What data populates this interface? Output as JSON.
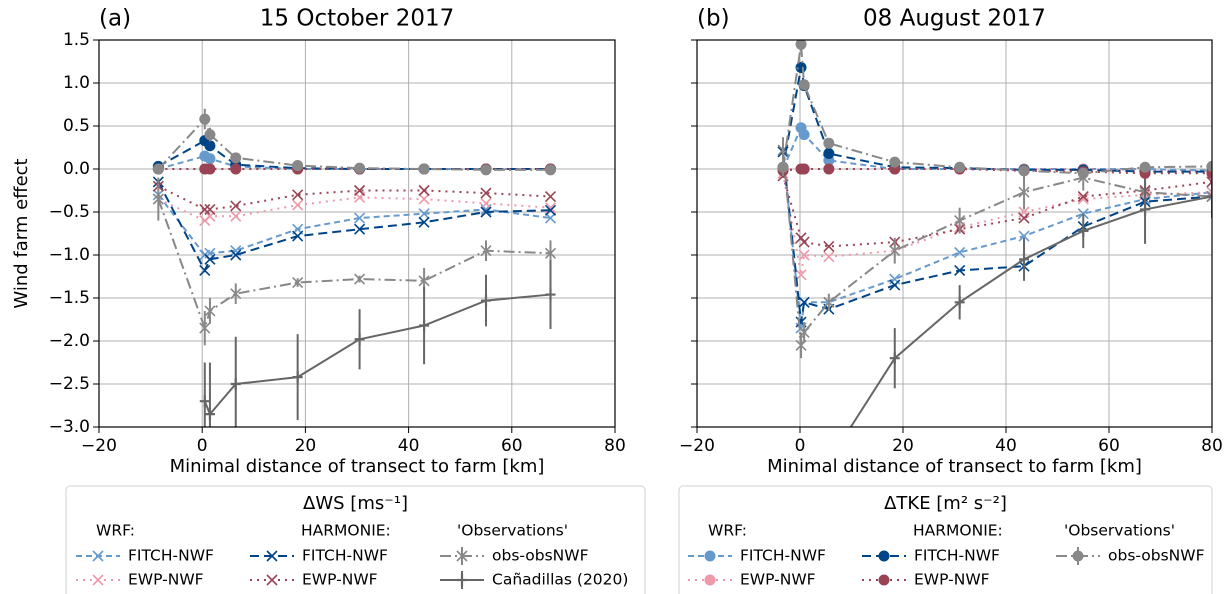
{
  "chart_data": [
    {
      "type": "line",
      "panel_label": "(a)",
      "title": "15 October 2017",
      "xlabel": "Minimal distance of transect to farm [km]",
      "ylabel": "Wind farm effect",
      "xlim": [
        -20,
        80
      ],
      "ylim": [
        -3,
        1.5
      ],
      "xticks": [
        {
          "value": -20,
          "label": "−20"
        },
        0,
        20,
        40,
        60,
        80
      ],
      "yticks": [
        {
          "value": -3,
          "label": "−3.0"
        },
        {
          "value": -2.5,
          "label": "−2.5"
        },
        {
          "value": -2,
          "label": "−2.0"
        },
        {
          "value": -1.5,
          "label": "−1.5"
        },
        {
          "value": -1,
          "label": "−1.0"
        },
        {
          "value": -0.5,
          "label": "−0.5"
        },
        {
          "value": 0,
          "label": "0.0"
        },
        {
          "value": 0.5,
          "label": "0.5"
        },
        {
          "value": 1,
          "label": "1.0"
        },
        {
          "value": 1.5,
          "label": "1.5"
        }
      ],
      "ytick_labels": true,
      "grid": true,
      "legend": {
        "title": "ΔWS [ms⁻¹]",
        "groups": [
          "WRF:",
          "HARMONIE:",
          "'Observations'"
        ]
      },
      "series": [
        {
          "name": "FITCH-NWF",
          "group": 0,
          "color": "#6699cc",
          "dash": "dashed",
          "marker": "x",
          "x": [
            -8.5,
            0.5,
            1.5,
            6.5,
            18.5,
            30.5,
            43,
            55,
            67.5
          ],
          "values": [
            -0.3,
            -1.0,
            -0.98,
            -0.95,
            -0.7,
            -0.57,
            -0.52,
            -0.47,
            -0.57
          ]
        },
        {
          "name": "EWP-NWF",
          "group": 0,
          "color": "#ee99aa",
          "dash": "dotted",
          "marker": "x",
          "x": [
            -8.5,
            0.5,
            1.5,
            6.5,
            18.5,
            30.5,
            43,
            55,
            67.5
          ],
          "values": [
            -0.35,
            -0.6,
            -0.55,
            -0.55,
            -0.42,
            -0.33,
            -0.35,
            -0.4,
            -0.45
          ]
        },
        {
          "name": "FITCH-NWF",
          "group": 1,
          "color": "#004488",
          "dash": "longdash",
          "marker": "x",
          "x": [
            -8.5,
            0.5,
            1.5,
            6.5,
            18.5,
            30.5,
            43,
            55,
            67.5
          ],
          "values": [
            -0.15,
            -1.18,
            -1.05,
            -1.0,
            -0.78,
            -0.7,
            -0.62,
            -0.5,
            -0.48
          ]
        },
        {
          "name": "EWP-NWF",
          "group": 1,
          "color": "#994455",
          "dash": "dotted",
          "marker": "x",
          "x": [
            -8.5,
            0.5,
            1.5,
            6.5,
            18.5,
            30.5,
            43,
            55,
            67.5
          ],
          "values": [
            -0.2,
            -0.47,
            -0.47,
            -0.43,
            -0.3,
            -0.25,
            -0.25,
            -0.28,
            -0.32
          ]
        },
        {
          "name": "obs-obsNWF",
          "group": 2,
          "color": "#888888",
          "dash": "dashdot",
          "marker": "x",
          "x": [
            -8.5,
            0.5,
            1.5,
            6.5,
            18.5,
            30.5,
            43,
            55,
            67.5
          ],
          "values": [
            -0.35,
            -1.85,
            -1.65,
            -1.45,
            -1.32,
            -1.28,
            -1.3,
            -0.95,
            -0.98
          ],
          "errors": [
            0.25,
            0.2,
            0.15,
            0.12,
            0.05,
            0.04,
            0.15,
            0.12,
            0.15
          ]
        },
        {
          "name": "Cañadillas (2020)",
          "group": 2,
          "color": "#666666",
          "dash": "solid",
          "marker": "plus",
          "x": [
            0.5,
            1.5,
            6.5,
            18.5,
            30.5,
            43,
            55,
            67.5
          ],
          "values": [
            -2.7,
            -2.85,
            -2.5,
            -2.42,
            -1.98,
            -1.82,
            -1.53,
            -1.46
          ],
          "errors": [
            0.45,
            0.6,
            0.55,
            0.5,
            0.35,
            0.45,
            0.3,
            0.4
          ]
        }
      ],
      "other_series": [
        {
          "color": "#6699cc",
          "dash": "dashed",
          "marker": "circle",
          "x": [
            -8.5,
            0.5,
            1.5,
            6.5,
            18.5,
            30.5,
            43,
            55,
            67.5
          ],
          "values": [
            0,
            0.15,
            0.12,
            0.03,
            0,
            0,
            0,
            0,
            0
          ]
        },
        {
          "color": "#ee99aa",
          "dash": "dotted",
          "marker": "circle",
          "x": [
            -8.5,
            0.5,
            1.5,
            6.5,
            18.5,
            30.5,
            43,
            55,
            67.5
          ],
          "values": [
            0,
            0,
            0,
            0,
            0,
            0,
            0,
            0,
            0
          ]
        },
        {
          "color": "#004488",
          "dash": "longdash",
          "marker": "circle",
          "x": [
            -8.5,
            0.5,
            1.5,
            6.5,
            18.5,
            30.5,
            43,
            55,
            67.5
          ],
          "values": [
            0.03,
            0.33,
            0.27,
            0.05,
            0.01,
            0,
            0,
            0,
            0
          ]
        },
        {
          "color": "#994455",
          "dash": "dotted",
          "marker": "circle",
          "x": [
            -8.5,
            0.5,
            1.5,
            6.5,
            18.5,
            30.5,
            43,
            55,
            67.5
          ],
          "values": [
            0,
            0,
            0,
            0,
            0,
            0,
            0,
            0,
            0
          ]
        },
        {
          "color": "#888888",
          "dash": "dashdot",
          "marker": "circle",
          "x": [
            -8.5,
            0.5,
            1.5,
            6.5,
            18.5,
            30.5,
            43,
            55,
            67.5
          ],
          "values": [
            0,
            0.58,
            0.4,
            0.13,
            0.04,
            0.01,
            0,
            -0.01,
            -0.01
          ],
          "errors": [
            0.03,
            0.12,
            0.08,
            0.04,
            0.02,
            0.02,
            0.02,
            0.02,
            0.02
          ]
        }
      ]
    },
    {
      "type": "line",
      "panel_label": "(b)",
      "title": "08 August 2017",
      "xlabel": "Minimal distance of transect to farm [km]",
      "xlim": [
        -20,
        80
      ],
      "ylim": [
        -3,
        1.5
      ],
      "xticks": [
        {
          "value": -20,
          "label": "−20"
        },
        0,
        20,
        40,
        60,
        80
      ],
      "yticks": [
        -3,
        -2.5,
        -2,
        -1.5,
        -1,
        -0.5,
        0,
        0.5,
        1,
        1.5
      ],
      "ytick_labels": false,
      "grid": true,
      "legend": {
        "title": "ΔTKE [m² s⁻²]",
        "groups": [
          "WRF:",
          "HARMONIE:",
          "'Observations'"
        ]
      },
      "series": [
        {
          "name": "FITCH-NWF",
          "group": 0,
          "color": "#6699cc",
          "dash": "dashed",
          "marker": "circle",
          "x": [
            -3.3,
            0.2,
            0.8,
            5.6,
            18.4,
            31,
            43.5,
            55,
            67,
            80
          ],
          "values": [
            0,
            0.48,
            0.4,
            0.1,
            0,
            0,
            0,
            0,
            0,
            -0.02
          ]
        },
        {
          "name": "EWP-NWF",
          "group": 0,
          "color": "#ee99aa",
          "dash": "dotted",
          "marker": "circle",
          "x": [
            -3.3,
            0.2,
            0.8,
            5.6,
            18.4,
            31,
            43.5,
            55,
            67,
            80
          ],
          "values": [
            0,
            0,
            0,
            0,
            0,
            0,
            0,
            0,
            -0.02,
            -0.03
          ]
        },
        {
          "name": "FITCH-NWF",
          "group": 1,
          "color": "#004488",
          "dash": "longdash",
          "marker": "circle",
          "x": [
            -3.3,
            0.2,
            0.8,
            5.6,
            18.4,
            31,
            43.5,
            55,
            67,
            80
          ],
          "values": [
            0.02,
            1.18,
            0.97,
            0.18,
            0.02,
            0.01,
            -0.01,
            -0.01,
            -0.03,
            -0.03
          ]
        },
        {
          "name": "EWP-NWF",
          "group": 1,
          "color": "#994455",
          "dash": "dotted",
          "marker": "circle",
          "x": [
            -3.3,
            0.2,
            0.8,
            5.6,
            18.4,
            31,
            43.5,
            55,
            67,
            80
          ],
          "values": [
            -0.02,
            0,
            0,
            0,
            0,
            0,
            -0.02,
            -0.03,
            -0.05,
            -0.05
          ]
        },
        {
          "name": "obs-obsNWF",
          "group": 2,
          "color": "#888888",
          "dash": "dashdot",
          "marker": "circle",
          "x": [
            -3.3,
            0.2,
            0.8,
            5.6,
            18.4,
            31,
            43.5,
            55,
            67,
            80
          ],
          "values": [
            0.02,
            1.45,
            0.98,
            0.3,
            0.08,
            0.02,
            -0.02,
            -0.05,
            0.02,
            0.03
          ],
          "errors": [
            0.1,
            0.08,
            0.06,
            0.03,
            0.02,
            0.02,
            0.03,
            0.03,
            0.03,
            0.02
          ]
        }
      ],
      "other_series": [
        {
          "color": "#6699cc",
          "dash": "dashed",
          "marker": "x",
          "x": [
            -3.3,
            0.2,
            0.8,
            5.6,
            18.4,
            31,
            43.5,
            55,
            67,
            80
          ],
          "values": [
            0.2,
            -1.85,
            -1.55,
            -1.55,
            -1.28,
            -0.97,
            -0.78,
            -0.52,
            -0.35,
            -0.27
          ]
        },
        {
          "color": "#ee99aa",
          "dash": "dotted",
          "marker": "x",
          "x": [
            -3.3,
            0.2,
            0.8,
            5.6,
            18.4,
            31,
            43.5,
            55,
            67,
            80
          ],
          "values": [
            -0.05,
            -1.23,
            -1.0,
            -1.02,
            -0.95,
            -0.68,
            -0.5,
            -0.35,
            -0.3,
            -0.27
          ]
        },
        {
          "color": "#004488",
          "dash": "longdash",
          "marker": "x",
          "x": [
            -3.3,
            0.2,
            0.8,
            5.6,
            18.4,
            31,
            43.5,
            55,
            67,
            80
          ],
          "values": [
            0.2,
            -1.78,
            -1.55,
            -1.63,
            -1.35,
            -1.18,
            -1.13,
            -0.67,
            -0.38,
            -0.32
          ]
        },
        {
          "color": "#994455",
          "dash": "dotted",
          "marker": "x",
          "x": [
            -3.3,
            0.2,
            0.8,
            5.6,
            18.4,
            31,
            43.5,
            55,
            67,
            80
          ],
          "values": [
            -0.08,
            -0.8,
            -0.85,
            -0.9,
            -0.85,
            -0.7,
            -0.57,
            -0.32,
            -0.25,
            -0.15
          ]
        },
        {
          "color": "#888888",
          "dash": "dashdot",
          "marker": "x",
          "x": [
            -3.3,
            0.2,
            0.8,
            5.6,
            18.4,
            31,
            43.5,
            55,
            67,
            80
          ],
          "values": [
            0.22,
            -2.05,
            -1.9,
            -1.55,
            -0.95,
            -0.6,
            -0.27,
            -0.1,
            -0.27,
            -0.32
          ],
          "errors": [
            0.15,
            0.15,
            0.12,
            0.1,
            0.15,
            0.15,
            0.2,
            0.15,
            0.2,
            0.15
          ]
        },
        {
          "color": "#666666",
          "dash": "solid",
          "marker": "plus",
          "x": [
            5.6,
            18.4,
            31,
            43.5,
            55,
            67,
            80
          ],
          "values": [
            -3.4,
            -2.2,
            -1.55,
            -1.05,
            -0.72,
            -0.47,
            -0.32
          ],
          "errors": [
            0.3,
            0.35,
            0.2,
            0.25,
            0.2,
            0.4,
            0.25
          ]
        }
      ]
    }
  ]
}
